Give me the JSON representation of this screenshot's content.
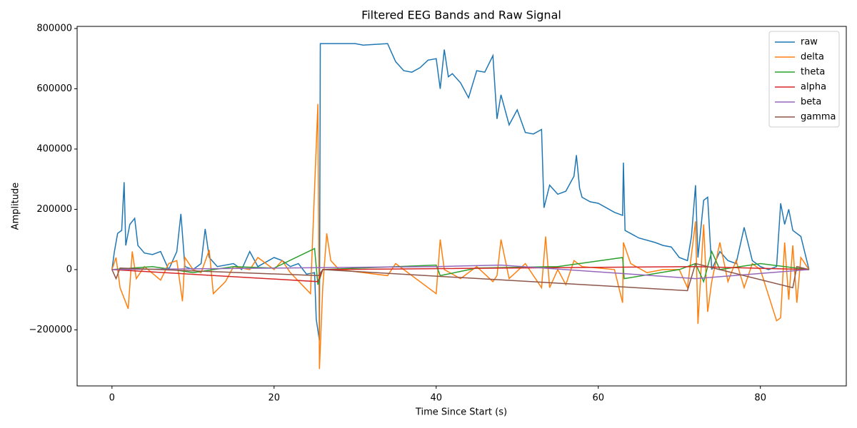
{
  "chart_data": {
    "type": "line",
    "title": "Filtered EEG Bands and Raw Signal",
    "x_label": "Time Since Start (s)",
    "y_label": "Amplitude",
    "xlim": [
      -4.3,
      90.6
    ],
    "ylim": [
      -386000,
      807000
    ],
    "xticks": [
      0,
      20,
      40,
      60,
      80
    ],
    "yticks": [
      {
        "value": -200000,
        "label": "−200000"
      },
      0,
      200000,
      400000,
      600000,
      800000
    ],
    "legend": "upper right",
    "series": [
      {
        "name": "raw",
        "color": "#1f77b4",
        "x": [
          0,
          0.3,
          0.7,
          1.2,
          1.5,
          1.7,
          2.2,
          2.8,
          3.2,
          4,
          5,
          6,
          7,
          8,
          8.5,
          9,
          10,
          11,
          11.5,
          12,
          13,
          15,
          16,
          17,
          18,
          20,
          21,
          22,
          23,
          24,
          25,
          25.2,
          25.6,
          25.7,
          30,
          31,
          34,
          34.5,
          35,
          36,
          37,
          38,
          39,
          40,
          40.5,
          41,
          41.5,
          42,
          43,
          44,
          45,
          46,
          47,
          47.5,
          48,
          49,
          50,
          51,
          52,
          53,
          53.3,
          54,
          55,
          56,
          57,
          57.3,
          57.7,
          58,
          59,
          60,
          62,
          63,
          63.1,
          63.3,
          65,
          67,
          68,
          69,
          70,
          71,
          71.5,
          72,
          72.3,
          73,
          73.5,
          74,
          75,
          76,
          77,
          78,
          79,
          80,
          81,
          82,
          82.5,
          83,
          83.5,
          84,
          85,
          86
        ],
        "values": [
          0,
          60000,
          120000,
          130000,
          290000,
          80000,
          150000,
          170000,
          80000,
          55000,
          50000,
          60000,
          0,
          60000,
          185000,
          10000,
          0,
          20000,
          135000,
          40000,
          10000,
          20000,
          0,
          60000,
          10000,
          40000,
          30000,
          10000,
          20000,
          -15000,
          -10000,
          -165000,
          -235000,
          750000,
          750000,
          745000,
          750000,
          720000,
          690000,
          660000,
          655000,
          670000,
          695000,
          700000,
          600000,
          730000,
          640000,
          650000,
          620000,
          570000,
          660000,
          655000,
          710000,
          500000,
          580000,
          480000,
          530000,
          455000,
          450000,
          465000,
          205000,
          280000,
          250000,
          260000,
          310000,
          380000,
          270000,
          240000,
          225000,
          220000,
          190000,
          180000,
          355000,
          130000,
          105000,
          90000,
          80000,
          75000,
          40000,
          30000,
          110000,
          280000,
          40000,
          230000,
          240000,
          0,
          60000,
          30000,
          20000,
          140000,
          30000,
          10000,
          0,
          10000,
          220000,
          150000,
          200000,
          130000,
          110000,
          0
        ]
      },
      {
        "name": "delta",
        "color": "#ff7f0e",
        "x": [
          0,
          0.5,
          1,
          2,
          2.5,
          3,
          4,
          6,
          7,
          8,
          8.7,
          9,
          10,
          11,
          12,
          12.5,
          14,
          15,
          17,
          18,
          20,
          21,
          22,
          24.5,
          25.4,
          25.6,
          26,
          26.5,
          27,
          28,
          34,
          35,
          40,
          40.5,
          41,
          43,
          45,
          47,
          47.5,
          48,
          49,
          51,
          53,
          53.5,
          54,
          55,
          56,
          57,
          58,
          62,
          63,
          63.1,
          64,
          66,
          68,
          70,
          71,
          72,
          72.3,
          73,
          73.5,
          74,
          75,
          76,
          77,
          78,
          79,
          80,
          82,
          82.5,
          83,
          83.5,
          84,
          84.5,
          85,
          86
        ],
        "values": [
          0,
          40000,
          -60000,
          -130000,
          60000,
          -30000,
          10000,
          -35000,
          20000,
          30000,
          -105000,
          40000,
          0,
          -10000,
          65000,
          -80000,
          -40000,
          10000,
          0,
          40000,
          0,
          30000,
          -10000,
          -80000,
          550000,
          -330000,
          -60000,
          120000,
          30000,
          0,
          -20000,
          20000,
          -80000,
          100000,
          0,
          -30000,
          10000,
          -40000,
          -20000,
          100000,
          -30000,
          20000,
          -60000,
          110000,
          -60000,
          0,
          -50000,
          30000,
          10000,
          0,
          -110000,
          90000,
          20000,
          -10000,
          0,
          0,
          -60000,
          160000,
          -180000,
          150000,
          -140000,
          -40000,
          90000,
          -40000,
          30000,
          -60000,
          20000,
          0,
          -170000,
          -160000,
          90000,
          -100000,
          80000,
          -110000,
          40000,
          0
        ]
      },
      {
        "name": "theta",
        "color": "#2ca02c",
        "x": [
          0,
          5,
          10,
          15,
          20,
          25,
          25.4,
          26,
          40,
          40.5,
          45,
          55,
          63,
          63.2,
          70,
          72,
          73,
          74,
          75,
          80,
          83,
          86
        ],
        "values": [
          0,
          10000,
          -10000,
          10000,
          5000,
          70000,
          -50000,
          0,
          15000,
          -20000,
          5000,
          10000,
          40000,
          -30000,
          0,
          20000,
          -40000,
          60000,
          0,
          20000,
          10000,
          0
        ]
      },
      {
        "name": "alpha",
        "color": "#d62728",
        "x": [
          0,
          25.4,
          26,
          72,
          86
        ],
        "values": [
          0,
          -40000,
          0,
          10000,
          0
        ]
      },
      {
        "name": "beta",
        "color": "#9467bd",
        "x": [
          0,
          40,
          48,
          72,
          86
        ],
        "values": [
          0,
          10000,
          15000,
          -30000,
          0
        ]
      },
      {
        "name": "gamma",
        "color": "#8c564b",
        "x": [
          0,
          0.5,
          1,
          25.5,
          26,
          71,
          72,
          84,
          84.5,
          86
        ],
        "values": [
          0,
          -30000,
          5000,
          -20000,
          0,
          -70000,
          20000,
          -60000,
          10000,
          0
        ]
      }
    ]
  }
}
